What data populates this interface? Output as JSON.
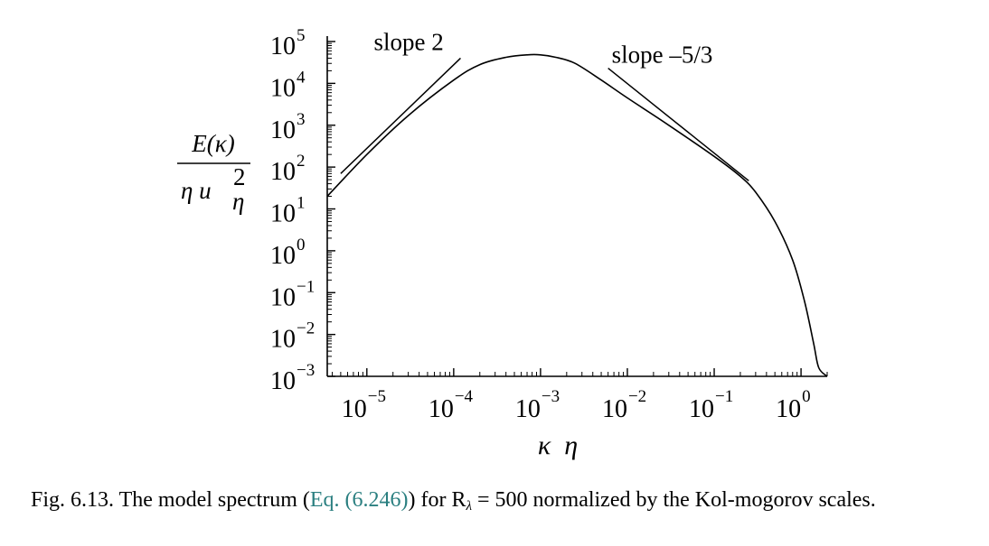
{
  "chart_data": {
    "type": "line",
    "scale": {
      "x": "log",
      "y": "log"
    },
    "xlim": [
      3.5e-06,
      2.0
    ],
    "ylim": [
      0.001,
      100000
    ],
    "xticks": [
      {
        "base": "10",
        "exp": "−5"
      },
      {
        "base": "10",
        "exp": "−4"
      },
      {
        "base": "10",
        "exp": "−3"
      },
      {
        "base": "10",
        "exp": "−2"
      },
      {
        "base": "10",
        "exp": "−1"
      },
      {
        "base": "10",
        "exp": "0"
      }
    ],
    "yticks": [
      {
        "base": "10",
        "exp": "5"
      },
      {
        "base": "10",
        "exp": "4"
      },
      {
        "base": "10",
        "exp": "3"
      },
      {
        "base": "10",
        "exp": "2"
      },
      {
        "base": "10",
        "exp": "1"
      },
      {
        "base": "10",
        "exp": "0"
      },
      {
        "base": "10",
        "exp": "−1"
      },
      {
        "base": "10",
        "exp": "−2"
      },
      {
        "base": "10",
        "exp": "−3"
      }
    ],
    "ylabel": {
      "numerator": "E(κ)",
      "denominator": "η u",
      "sup": "2",
      "sub": "η"
    },
    "xlabel": "κ  η",
    "series": [
      {
        "x": [
          3.5e-06,
          1e-05,
          3e-05,
          0.0001,
          0.0002,
          0.0004,
          0.0007,
          0.001,
          0.0015,
          0.0025,
          0.005,
          0.01,
          0.03,
          0.1,
          0.2,
          0.3,
          0.5,
          0.8,
          1.1,
          1.4,
          1.6,
          2.0
        ],
        "y": [
          20,
          200,
          1700,
          12000,
          28000,
          42000,
          48000,
          48000,
          42000,
          30000,
          12000,
          4500,
          1000,
          180,
          60,
          25,
          5,
          0.6,
          0.06,
          0.006,
          0.0016,
          0.001
        ]
      }
    ],
    "reference_lines": [
      {
        "label": "slope 2",
        "x": [
          5e-06,
          0.00012
        ],
        "y": [
          70,
          40000
        ]
      },
      {
        "label": "slope –5/3",
        "x": [
          0.006,
          0.25
        ],
        "y": [
          23000,
          47
        ]
      }
    ]
  },
  "caption": {
    "prefix": "Fig. 6.13. The model spectrum (",
    "ref": "Eq. (6.246)",
    "middle": ") for R",
    "subscript": "λ",
    "suffix": " = 500 normalized by the Kol-mogorov scales."
  }
}
